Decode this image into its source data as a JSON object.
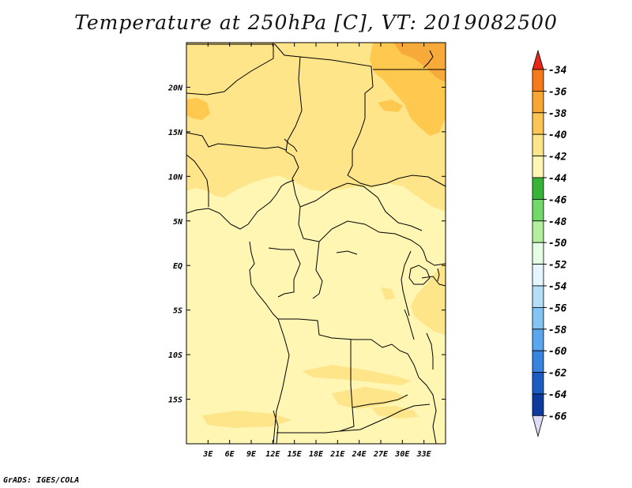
{
  "title": "Temperature at 250hPa [C], VT: 2019082500",
  "footer": "GrADS: IGES/COLA",
  "map": {
    "lon_range": [
      0,
      36
    ],
    "lat_range": [
      -20,
      25
    ],
    "lon_ticks": [
      "3E",
      "6E",
      "9E",
      "12E",
      "15E",
      "18E",
      "21E",
      "24E",
      "27E",
      "30E",
      "33E"
    ],
    "lon_tick_values": [
      3,
      6,
      9,
      12,
      15,
      18,
      21,
      24,
      27,
      30,
      33
    ],
    "lat_ticks": [
      "20N",
      "15N",
      "10N",
      "5N",
      "EQ",
      "5S",
      "10S",
      "15S"
    ],
    "lat_tick_values": [
      20,
      15,
      10,
      5,
      0,
      -5,
      -10,
      -15
    ],
    "background_color": "#fff6b4",
    "band_42_40_color": "#ffe58a",
    "band_40_38_color": "#ffc84e",
    "band_38_36_color": "#f7a93a"
  },
  "colorbar": {
    "levels": [
      "-34",
      "-36",
      "-38",
      "-40",
      "-42",
      "-44",
      "-46",
      "-48",
      "-50",
      "-52",
      "-54",
      "-56",
      "-58",
      "-60",
      "-62",
      "-64",
      "-66"
    ],
    "colors": [
      "#f34a0a",
      "#f67a1a",
      "#f9a632",
      "#fdc654",
      "#ffe58a",
      "#fff6b4",
      "#36b438",
      "#72d86a",
      "#b2ee9e",
      "#e4ffe4",
      "#e6f6ff",
      "#b4def8",
      "#84c4f4",
      "#5aa6ef",
      "#3684e0",
      "#1b5cc4",
      "#0c3a9e",
      "#091774"
    ],
    "top_arrow_color": "#e8261a",
    "bottom_arrow_color": "#dcdcf8"
  }
}
